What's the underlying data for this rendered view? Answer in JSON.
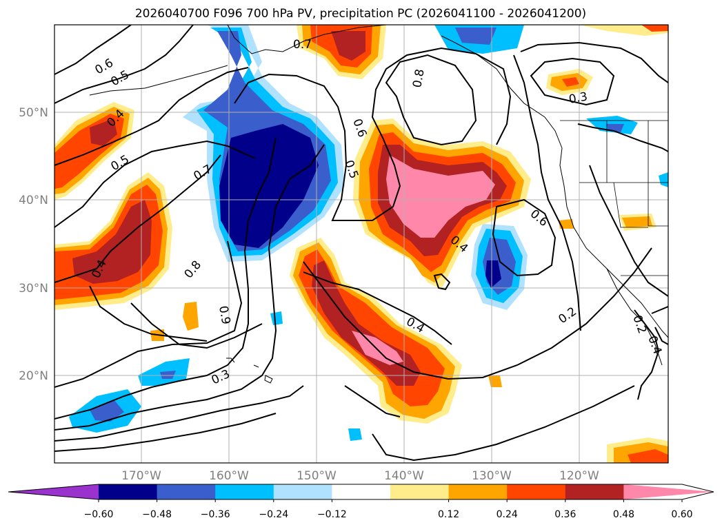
{
  "title": "2026040700 F096 700 hPa PV, precipitation PC (2026041100 - 2026041200)",
  "map": {
    "lat_labels": [
      "50°N",
      "40°N",
      "30°N",
      "20°N"
    ],
    "lon_labels": [
      "170°W",
      "160°W",
      "150°W",
      "140°W",
      "130°W",
      "120°W"
    ],
    "grid": true
  },
  "contour_labels": [
    "0.6",
    "0.5",
    "0.4",
    "0.5",
    "0.7",
    "0.4",
    "0.8",
    "0.9",
    "0.3",
    "0.7",
    "0.6",
    "0.5",
    "0.8",
    "0.3",
    "0.6",
    "0.4",
    "0.4",
    "0.2",
    "0.2",
    "0.4"
  ],
  "colorbar": {
    "ticks": [
      "−0.60",
      "−0.48",
      "−0.36",
      "−0.24",
      "−0.12",
      "0.12",
      "0.24",
      "0.36",
      "0.48",
      "0.60"
    ],
    "colors": [
      "#9a32cd",
      "#00008b",
      "#3a5fcd",
      "#00bfff",
      "#b0e2ff",
      "#ffffff",
      "#ffec8b",
      "#ffa500",
      "#ff4500",
      "#b22222",
      "#ff88aa"
    ]
  }
}
